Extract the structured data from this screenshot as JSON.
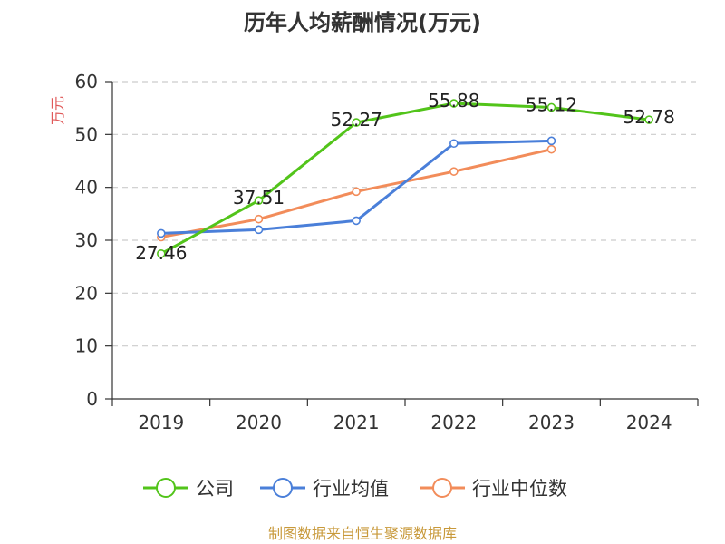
{
  "chart_data": {
    "type": "line",
    "title": "历年人均薪酬情况(万元)",
    "ylabel": "万元",
    "xlabel": "",
    "categories": [
      "2019",
      "2020",
      "2021",
      "2022",
      "2023",
      "2024"
    ],
    "ylim": [
      0,
      60
    ],
    "yticks": [
      0,
      10,
      20,
      30,
      40,
      50,
      60
    ],
    "grid": "horizontal-dashed",
    "legend_position": "bottom",
    "series": [
      {
        "name": "公司",
        "color": "#52c41a",
        "values": [
          27.46,
          37.51,
          52.27,
          55.88,
          55.12,
          52.78
        ],
        "labels": [
          "27.46",
          "37.51",
          "52.27",
          "55.88",
          "55.12",
          "52.78"
        ]
      },
      {
        "name": "行业均值",
        "color": "#4a7fd9",
        "values": [
          31.3,
          32.0,
          33.7,
          48.3,
          48.8,
          null
        ]
      },
      {
        "name": "行业中位数",
        "color": "#f28c5a",
        "values": [
          30.6,
          34.0,
          39.2,
          43.0,
          47.2,
          null
        ]
      }
    ]
  },
  "source_text": "制图数据来自恒生聚源数据库",
  "colors": {
    "ylabel": "#e05a5a",
    "source": "#c8993a",
    "axis": "#333333",
    "grid": "#cccccc"
  }
}
